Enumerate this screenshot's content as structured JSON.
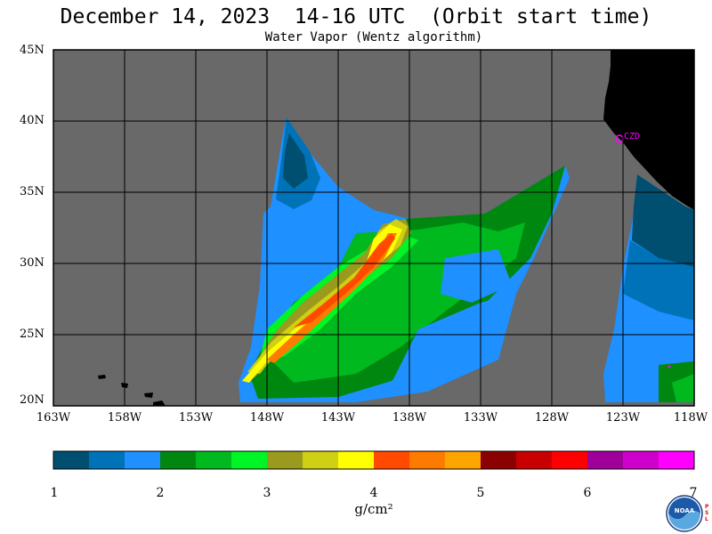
{
  "header": {
    "title": "December 14, 2023  14-16 UTC  (Orbit start time)",
    "subtitle": "Water Vapor (Wentz algorithm)"
  },
  "map": {
    "lat_labels": [
      "45N",
      "40N",
      "35N",
      "30N",
      "25N",
      "20N"
    ],
    "lon_labels": [
      "163W",
      "158W",
      "153W",
      "148W",
      "143W",
      "138W",
      "133W",
      "128W",
      "123W",
      "118W"
    ],
    "station_label": "CZD",
    "colors": {
      "no_data": "#696969",
      "land": "#000000",
      "grid": "#000000",
      "station": "#ff00ff"
    }
  },
  "colorbar": {
    "ticks": [
      "1",
      "2",
      "3",
      "4",
      "5",
      "6",
      "7"
    ],
    "units": "g/cm²",
    "colors": [
      "#004e70",
      "#0072b8",
      "#1e90ff",
      "#00870f",
      "#00b91e",
      "#00f526",
      "#9a9a1e",
      "#cfcf13",
      "#ffff00",
      "#ff4a00",
      "#ff7b00",
      "#ffa500",
      "#8b0000",
      "#c80000",
      "#ff0000",
      "#a0009a",
      "#d000cc",
      "#ff00ff"
    ]
  },
  "logo": {
    "org": "NOAA",
    "lab": "PSL"
  }
}
